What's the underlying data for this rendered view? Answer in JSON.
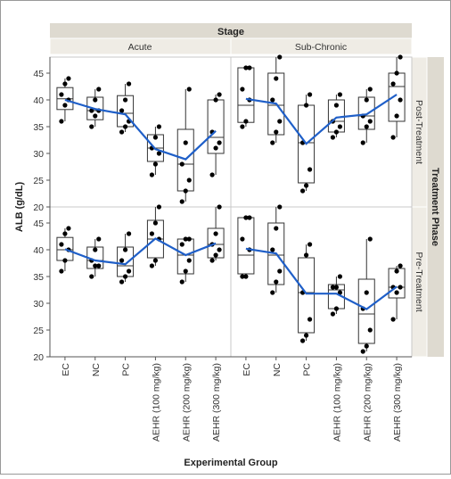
{
  "chart_data": {
    "type": "box",
    "layout": "faceted-grid",
    "title": "",
    "xlabel": "Experimental Group",
    "ylabel": "ALB  (g/dL)",
    "column_facet": {
      "label": "Stage",
      "levels": [
        "Acute",
        "Sub-Chronic"
      ]
    },
    "row_facet": {
      "label": "Treatment Phase",
      "levels": [
        "Post-Treatment",
        "Pre-Treatment"
      ]
    },
    "categories": [
      "EC",
      "NC",
      "PC",
      "AEHR (100 mg/kg)",
      "AEHR (200 mg/kg)",
      "AEHR (300 mg/kg)"
    ],
    "ylim": [
      20,
      48
    ],
    "yticks": [
      20,
      25,
      30,
      35,
      40,
      45
    ],
    "grid": false,
    "legend": "none",
    "colors": {
      "mean_line": "#1f5fc8",
      "box": "#333333",
      "point": "#000000",
      "header_bg": "#dedad0",
      "panel_border": "#bbbbbb"
    },
    "panels": [
      {
        "stage": "Acute",
        "phase": "Post-Treatment",
        "boxes": [
          {
            "q1": 38.2,
            "median": 40.2,
            "q3": 42.3,
            "lo": 36.0,
            "hi": 44.0
          },
          {
            "q1": 36.3,
            "median": 38.0,
            "q3": 40.5,
            "lo": 35.0,
            "hi": 42.0
          },
          {
            "q1": 35.0,
            "median": 37.5,
            "q3": 40.8,
            "lo": 34.0,
            "hi": 43.0
          },
          {
            "q1": 28.5,
            "median": 31.0,
            "q3": 33.5,
            "lo": 26.0,
            "hi": 35.0
          },
          {
            "q1": 23.0,
            "median": 28.0,
            "q3": 34.5,
            "lo": 21.0,
            "hi": 42.0
          },
          {
            "q1": 30.0,
            "median": 33.0,
            "q3": 40.0,
            "lo": 26.0,
            "hi": 41.0
          }
        ],
        "points": [
          [
            36,
            39,
            40,
            41,
            43,
            44
          ],
          [
            35,
            37,
            38,
            38,
            40,
            42
          ],
          [
            34,
            35,
            36,
            38,
            40,
            43
          ],
          [
            26,
            28,
            30,
            31,
            33,
            35
          ],
          [
            21,
            23,
            25,
            28,
            32,
            42
          ],
          [
            26,
            31,
            32,
            34,
            40,
            41
          ]
        ],
        "means": [
          40.0,
          38.3,
          37.3,
          30.8,
          28.9,
          34.2
        ]
      },
      {
        "stage": "Sub-Chronic",
        "phase": "Post-Treatment",
        "boxes": [
          {
            "q1": 35.8,
            "median": 39.0,
            "q3": 46.0,
            "lo": 35.0,
            "hi": 46.0
          },
          {
            "q1": 33.5,
            "median": 39.0,
            "q3": 45.0,
            "lo": 32.0,
            "hi": 48.0
          },
          {
            "q1": 24.5,
            "median": 32.0,
            "q3": 39.0,
            "lo": 23.0,
            "hi": 41.0
          },
          {
            "q1": 34.0,
            "median": 36.0,
            "q3": 40.0,
            "lo": 33.0,
            "hi": 41.0
          },
          {
            "q1": 34.5,
            "median": 37.0,
            "q3": 40.5,
            "lo": 32.0,
            "hi": 42.0
          },
          {
            "q1": 36.0,
            "median": 42.5,
            "q3": 45.0,
            "lo": 33.0,
            "hi": 48.0
          }
        ],
        "points": [
          [
            35,
            36,
            40,
            42,
            46,
            46
          ],
          [
            32,
            34,
            36,
            40,
            44,
            48
          ],
          [
            23,
            24,
            27,
            32,
            39,
            41
          ],
          [
            33,
            34,
            35,
            36,
            39,
            41
          ],
          [
            32,
            35,
            36,
            37,
            40,
            42
          ],
          [
            33,
            37,
            40,
            43,
            45,
            48
          ]
        ],
        "means": [
          40.2,
          39.3,
          31.8,
          36.7,
          37.3,
          41.0
        ]
      },
      {
        "stage": "Acute",
        "phase": "Pre-Treatment",
        "boxes": [
          {
            "q1": 38.0,
            "median": 40.0,
            "q3": 42.3,
            "lo": 36.0,
            "hi": 44.0
          },
          {
            "q1": 36.5,
            "median": 38.0,
            "q3": 40.5,
            "lo": 35.0,
            "hi": 42.0
          },
          {
            "q1": 35.0,
            "median": 37.0,
            "q3": 40.5,
            "lo": 34.0,
            "hi": 43.0
          },
          {
            "q1": 38.5,
            "median": 42.0,
            "q3": 45.5,
            "lo": 37.0,
            "hi": 48.0
          },
          {
            "q1": 35.5,
            "median": 39.0,
            "q3": 42.0,
            "lo": 34.0,
            "hi": 42.0
          },
          {
            "q1": 38.5,
            "median": 41.0,
            "q3": 44.0,
            "lo": 38.0,
            "hi": 48.0
          }
        ],
        "points": [
          [
            36,
            38,
            40,
            41,
            43,
            44
          ],
          [
            35,
            37,
            37,
            38,
            40,
            42
          ],
          [
            34,
            35,
            36,
            38,
            40,
            43
          ],
          [
            37,
            38,
            42,
            43,
            45,
            48
          ],
          [
            34,
            36,
            38,
            41,
            42,
            42
          ],
          [
            38,
            39,
            40,
            41,
            43,
            48
          ]
        ],
        "means": [
          40.1,
          38.0,
          37.3,
          42.1,
          39.0,
          41.2
        ]
      },
      {
        "stage": "Sub-Chronic",
        "phase": "Pre-Treatment",
        "boxes": [
          {
            "q1": 35.5,
            "median": 39.0,
            "q3": 46.0,
            "lo": 35.0,
            "hi": 46.0
          },
          {
            "q1": 33.5,
            "median": 39.0,
            "q3": 45.0,
            "lo": 32.0,
            "hi": 48.0
          },
          {
            "q1": 24.5,
            "median": 32.0,
            "q3": 38.5,
            "lo": 23.0,
            "hi": 41.0
          },
          {
            "q1": 29.0,
            "median": 32.5,
            "q3": 33.5,
            "lo": 28.0,
            "hi": 35.0
          },
          {
            "q1": 22.5,
            "median": 28.0,
            "q3": 34.5,
            "lo": 21.0,
            "hi": 42.0
          },
          {
            "q1": 31.0,
            "median": 33.0,
            "q3": 36.5,
            "lo": 27.0,
            "hi": 37.0
          }
        ],
        "points": [
          [
            35,
            35,
            40,
            42,
            46,
            46
          ],
          [
            32,
            34,
            36,
            40,
            44,
            48
          ],
          [
            23,
            24,
            27,
            32,
            39,
            41
          ],
          [
            28,
            29,
            32,
            33,
            33,
            35
          ],
          [
            21,
            22,
            25,
            29,
            32,
            42
          ],
          [
            27,
            32,
            33,
            33,
            36,
            37
          ]
        ],
        "means": [
          40.2,
          39.3,
          31.8,
          31.8,
          28.9,
          33.1
        ]
      }
    ]
  }
}
